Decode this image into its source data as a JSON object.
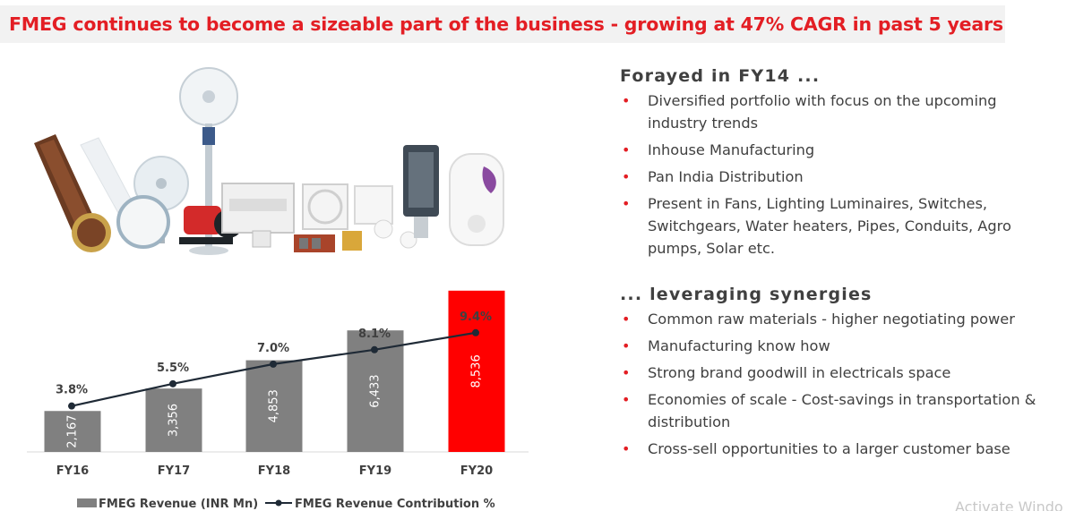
{
  "title": "FMEG continues to become a sizeable part of the business - growing at 47% CAGR in past 5 years",
  "section1": {
    "heading": "Forayed in FY14 ...",
    "bullets": [
      "Diversified portfolio with focus on the upcoming industry trends",
      "Inhouse Manufacturing",
      "Pan India Distribution",
      "Present in Fans, Lighting Luminaires, Switches, Switchgears, Water heaters, Pipes, Conduits, Agro pumps, Solar etc."
    ]
  },
  "section2": {
    "heading": "... leveraging synergies",
    "bullets": [
      "Common raw materials - higher negotiating power",
      "Manufacturing know how",
      "Strong brand goodwill in electricals space",
      "Economies of scale - Cost-savings in transportation & distribution",
      "Cross-sell opportunities to a larger customer base"
    ]
  },
  "watermark": "Activate Windo",
  "colors": {
    "accent": "#e31e24",
    "bar_gray": "#808080",
    "bar_highlight": "#ff0000",
    "line": "#1f2a36"
  },
  "chart_data": {
    "type": "bar",
    "title": "",
    "categories": [
      "FY16",
      "FY17",
      "FY18",
      "FY19",
      "FY20"
    ],
    "series": [
      {
        "name": "FMEG Revenue (INR Mn)",
        "type": "bar",
        "values": [
          2167,
          3356,
          4853,
          6433,
          8536
        ],
        "labels": [
          "2,167",
          "3,356",
          "4,853",
          "6,433",
          "8,536"
        ]
      },
      {
        "name": "FMEG Revenue Contribution %",
        "type": "line",
        "values": [
          3.8,
          5.5,
          7.0,
          8.1,
          9.4
        ],
        "labels": [
          "3.8%",
          "5.5%",
          "7.0%",
          "8.1%",
          "9.4%"
        ]
      }
    ],
    "highlight_category": "FY20",
    "ylim_bar": [
      0,
      9000
    ],
    "ylim_line": [
      2,
      10
    ],
    "grid": false,
    "legend": "bottom"
  }
}
